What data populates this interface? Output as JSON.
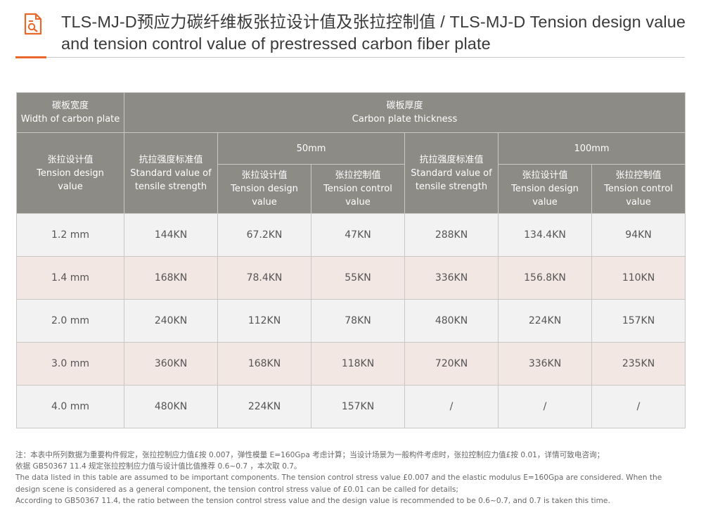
{
  "header": {
    "title": "TLS-MJ-D预应力碳纤维板张拉设计值及张拉控制值 / TLS-MJ-D Tension design value and tension control value of prestressed carbon fiber plate",
    "icon": "document-ruler-icon",
    "accent_color": "#e8672a"
  },
  "table": {
    "width_header": {
      "zh": "碳板宽度",
      "en": "Width of carbon plate"
    },
    "thickness_header": {
      "zh": "碳板厚度",
      "en": "Carbon plate thickness"
    },
    "row_label_header": {
      "zh": "张拉设计值",
      "en1": "Tension design",
      "en2": "value"
    },
    "strength_header": {
      "zh": "抗拉强度标准值",
      "en1": "Standard value of",
      "en2": "tensile strength"
    },
    "thickness_50": "50mm",
    "thickness_100": "100mm",
    "design_header": {
      "zh": "张拉设计值",
      "en1": "Tension design",
      "en2": "value"
    },
    "control_header": {
      "zh": "张拉控制值",
      "en1": "Tension control",
      "en2": "value"
    },
    "rows": [
      {
        "width": "1.2 mm",
        "s50": "144KN",
        "d50": "67.2KN",
        "c50": "47KN",
        "s100": "288KN",
        "d100": "134.4KN",
        "c100": "94KN"
      },
      {
        "width": "1.4 mm",
        "s50": "168KN",
        "d50": "78.4KN",
        "c50": "55KN",
        "s100": "336KN",
        "d100": "156.8KN",
        "c100": "110KN"
      },
      {
        "width": "2.0 mm",
        "s50": "240KN",
        "d50": "112KN",
        "c50": "78KN",
        "s100": "480KN",
        "d100": "224KN",
        "c100": "157KN"
      },
      {
        "width": "3.0 mm",
        "s50": "360KN",
        "d50": "168KN",
        "c50": "118KN",
        "s100": "720KN",
        "d100": "336KN",
        "c100": "235KN"
      },
      {
        "width": "4.0 mm",
        "s50": "480KN",
        "d50": "224KN",
        "c50": "157KN",
        "s100": "/",
        "d100": "/",
        "c100": "/"
      }
    ],
    "header_bg": "#8c8b86",
    "row_bg_odd": "#f2f2f2",
    "row_bg_even": "#f3e7e3"
  },
  "notes": {
    "line1": "注：本表中所列数据为重要构件假定，张拉控制应力值£按 0.007，弹性模量 E=160Gpa 考虑计算；当设计场景为一般构件考虑时，张拉控制应力值£按 0.01，详情可致电咨询；",
    "line2": "依据 GB50367 11.4 规定张拉控制应力值与设计值比值推荐 0.6~0.7 ，本次取 0.7。",
    "line3": "The data listed in this table are assumed to be important components. The tension control stress value £0.007 and the elastic modulus E=160Gpa are considered. When the",
    "line4": "design scene is considered as a general component, the tension control stress value of £0.01 can be called for details;",
    "line5": "According to GB50367 11.4, the ratio between the tension control stress value and the design value is recommended to be 0.6~0.7, and 0.7 is taken this time."
  }
}
